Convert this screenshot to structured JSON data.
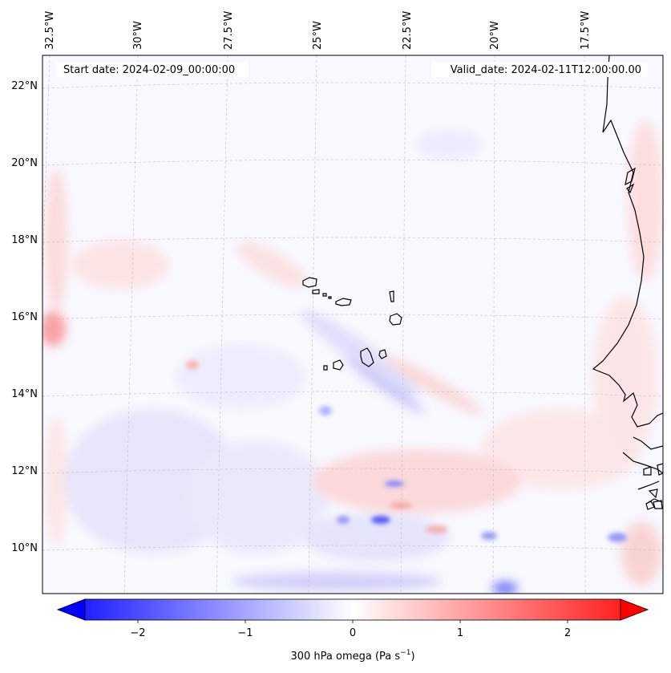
{
  "map": {
    "header": {
      "start": "Start date: 2024-02-09_00:00:00",
      "valid": "Valid_date: 2024-02-11T12:00:00.00"
    },
    "lon_labels": [
      "32.5°W",
      "30°W",
      "27.5°W",
      "25°W",
      "22.5°W",
      "20°W",
      "17.5°W"
    ],
    "lat_labels": [
      "22°N",
      "20°N",
      "18°N",
      "16°N",
      "14°N",
      "12°N",
      "10°N"
    ]
  },
  "colorbar": {
    "ticks": [
      "−2",
      "−1",
      "0",
      "1",
      "2"
    ],
    "tick_values": [
      -2,
      -1,
      0,
      1,
      2
    ],
    "range": [
      -2.5,
      2.5
    ],
    "label_main": "300 hPa omega (Pa s",
    "label_exp": "−1",
    "label_close": ")",
    "colormap": "bwr",
    "min_color": "#0000ff",
    "mid_color": "#ffffff",
    "max_color": "#ff0000"
  }
}
